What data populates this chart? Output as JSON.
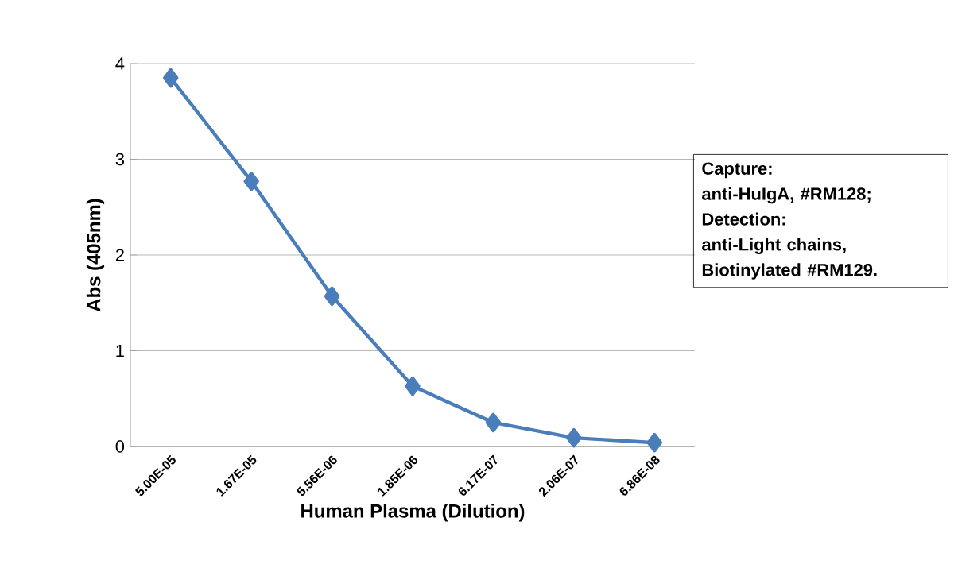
{
  "chart_data": {
    "type": "line",
    "xlabel": "Human Plasma (Dilution)",
    "ylabel": "Abs (405nm)",
    "categories": [
      "5.00E-05",
      "1.67E-05",
      "5.56E-06",
      "1.85E-06",
      "6.17E-07",
      "2.06E-07",
      "6.86E-08"
    ],
    "values": [
      3.85,
      2.77,
      1.57,
      0.63,
      0.25,
      0.09,
      0.04
    ],
    "color": "#4a7ebb",
    "marker": "diamond",
    "line_style": "solid",
    "ylim": [
      0,
      4
    ],
    "yticks": [
      0,
      1,
      2,
      3,
      4
    ],
    "grid": "y",
    "annotations": [
      "Capture:",
      "anti-HuIgA, #RM128;",
      "Detection:",
      "anti-Light chains,",
      "Biotinylated #RM129."
    ]
  }
}
